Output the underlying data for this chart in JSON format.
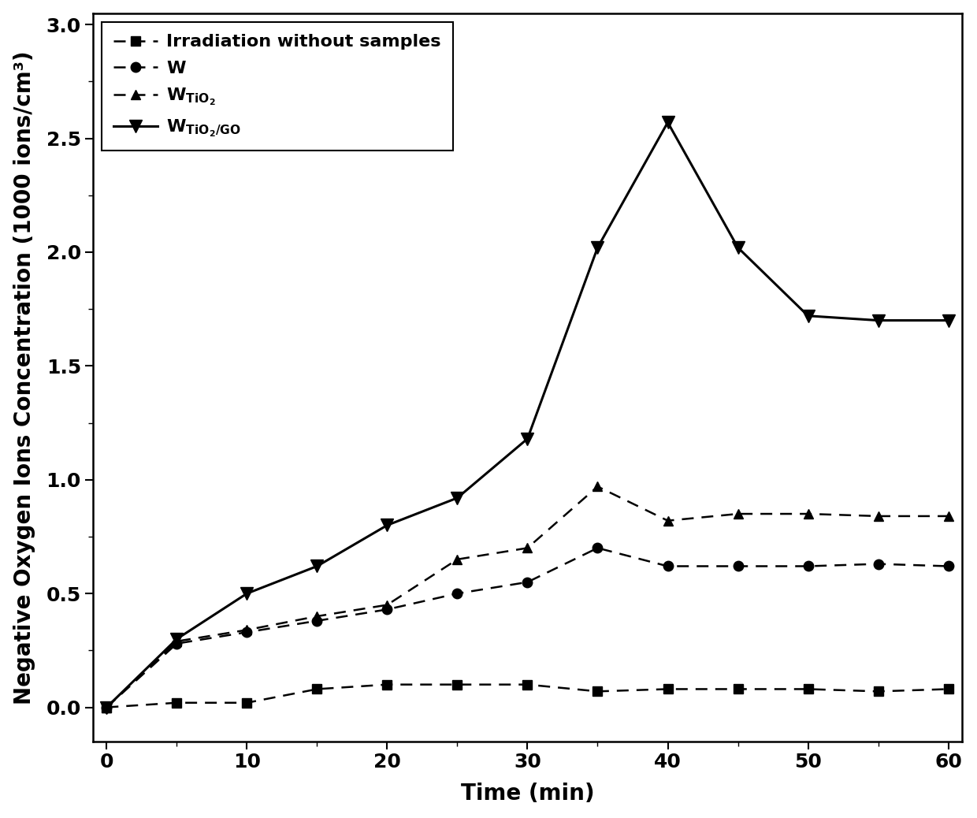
{
  "x": [
    0,
    5,
    10,
    15,
    20,
    25,
    30,
    35,
    40,
    45,
    50,
    55,
    60
  ],
  "irradiation": [
    0.0,
    0.02,
    0.02,
    0.08,
    0.1,
    0.1,
    0.1,
    0.07,
    0.08,
    0.08,
    0.08,
    0.07,
    0.08
  ],
  "W": [
    0.0,
    0.28,
    0.33,
    0.38,
    0.43,
    0.5,
    0.55,
    0.7,
    0.62,
    0.62,
    0.62,
    0.63,
    0.62
  ],
  "W_TiO2": [
    0.0,
    0.29,
    0.34,
    0.4,
    0.45,
    0.65,
    0.7,
    0.97,
    0.82,
    0.85,
    0.85,
    0.84,
    0.84
  ],
  "W_TiO2_GO": [
    0.0,
    0.3,
    0.5,
    0.62,
    0.8,
    0.92,
    1.18,
    2.02,
    2.57,
    2.02,
    1.72,
    1.7,
    1.7
  ],
  "xlabel": "Time (min)",
  "ylabel": "Negative Oxygen Ions Concentration (1000 ions/cm³)",
  "xlim": [
    0,
    60
  ],
  "ylim": [
    -0.15,
    3.05
  ],
  "yticks": [
    0.0,
    0.5,
    1.0,
    1.5,
    2.0,
    2.5,
    3.0
  ],
  "xticks": [
    0,
    10,
    20,
    30,
    40,
    50,
    60
  ],
  "line_color": "black",
  "bg_color": "white",
  "fontsize_label": 20,
  "fontsize_tick": 18,
  "fontsize_legend": 16
}
